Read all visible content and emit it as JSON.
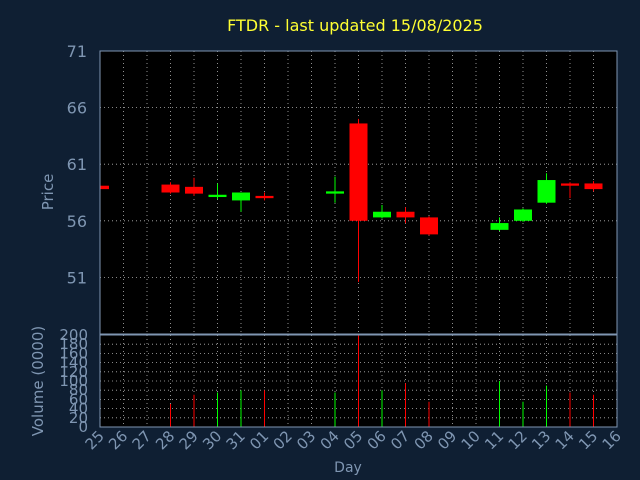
{
  "colors": {
    "background": "#0f1f33",
    "plot_background": "#000000",
    "title": "#ffff33",
    "axis_text": "#7f96b2",
    "frame": "#7f96b2",
    "grid": "#ffffff",
    "up": "#00ff00",
    "down": "#ff0000"
  },
  "chart_data": {
    "type": "candlestick",
    "title": "FTDR - last updated 15/08/2025",
    "ylabel": "Price",
    "volume_ylabel": "Volume (0000)",
    "xlabel": "Day",
    "ylim": [
      46,
      71
    ],
    "yticks": [
      51,
      56,
      61,
      66,
      71
    ],
    "volume_ylim": [
      0,
      200
    ],
    "volume_yticks": [
      0,
      20,
      40,
      60,
      80,
      100,
      120,
      140,
      160,
      180,
      200
    ],
    "grid": true,
    "x_ticks": [
      "25",
      "26",
      "27",
      "28",
      "29",
      "30",
      "31",
      "01",
      "02",
      "03",
      "04",
      "05",
      "06",
      "07",
      "08",
      "09",
      "10",
      "11",
      "12",
      "13",
      "14",
      "15",
      "16"
    ],
    "candles": [
      {
        "day": "25",
        "open": 59.1,
        "close": 58.8,
        "high": 59.2,
        "low": 58.8,
        "volume": 0
      },
      {
        "day": "28",
        "open": 59.2,
        "close": 58.5,
        "high": 59.4,
        "low": 58.4,
        "volume": 50
      },
      {
        "day": "29",
        "open": 59.0,
        "close": 58.4,
        "high": 59.8,
        "low": 58.2,
        "volume": 70
      },
      {
        "day": "30",
        "open": 58.1,
        "close": 58.3,
        "high": 59.3,
        "low": 57.9,
        "volume": 75
      },
      {
        "day": "31",
        "open": 57.8,
        "close": 58.5,
        "high": 58.5,
        "low": 56.8,
        "volume": 80
      },
      {
        "day": "01",
        "open": 58.2,
        "close": 58.0,
        "high": 58.5,
        "low": 57.8,
        "volume": 80
      },
      {
        "day": "04",
        "open": 58.4,
        "close": 58.6,
        "high": 59.9,
        "low": 57.6,
        "volume": 75
      },
      {
        "day": "05",
        "open": 64.6,
        "close": 56.0,
        "high": 65.0,
        "low": 50.6,
        "volume": 200
      },
      {
        "day": "06",
        "open": 56.3,
        "close": 56.8,
        "high": 57.4,
        "low": 56.2,
        "volume": 80
      },
      {
        "day": "07",
        "open": 56.8,
        "close": 56.3,
        "high": 57.2,
        "low": 55.8,
        "volume": 95
      },
      {
        "day": "08",
        "open": 56.3,
        "close": 54.8,
        "high": 56.4,
        "low": 54.7,
        "volume": 55
      },
      {
        "day": "11",
        "open": 55.2,
        "close": 55.8,
        "high": 56.3,
        "low": 55.1,
        "volume": 100
      },
      {
        "day": "12",
        "open": 56.0,
        "close": 57.0,
        "high": 57.1,
        "low": 55.9,
        "volume": 55
      },
      {
        "day": "13",
        "open": 57.6,
        "close": 59.6,
        "high": 60.2,
        "low": 57.5,
        "volume": 90
      },
      {
        "day": "14",
        "open": 59.3,
        "close": 59.1,
        "high": 59.4,
        "low": 58.0,
        "volume": 75
      },
      {
        "day": "15",
        "open": 59.3,
        "close": 58.8,
        "high": 59.5,
        "low": 58.6,
        "volume": 70
      }
    ]
  }
}
